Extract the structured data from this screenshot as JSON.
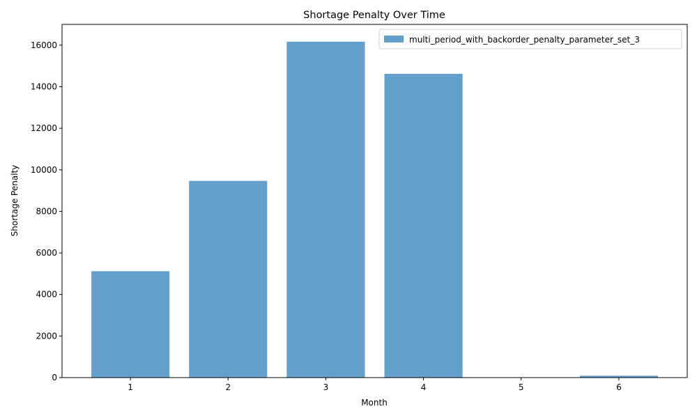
{
  "chart_data": {
    "type": "bar",
    "title": "Shortage Penalty Over Time",
    "xlabel": "Month",
    "ylabel": "Shortage Penalty",
    "categories": [
      "1",
      "2",
      "3",
      "4",
      "5",
      "6"
    ],
    "series": [
      {
        "name": "multi_period_with_backorder_penalty_parameter_set_3",
        "values": [
          5120,
          9470,
          16170,
          14620,
          0,
          90
        ]
      }
    ],
    "ylim": [
      0,
      17000
    ],
    "yticks": [
      0,
      2000,
      4000,
      6000,
      8000,
      10000,
      12000,
      14000,
      16000
    ],
    "grid": false,
    "legend_position": "top-right",
    "colors": {
      "bar": "#4a90c4",
      "bar_opacity": 0.86
    }
  }
}
